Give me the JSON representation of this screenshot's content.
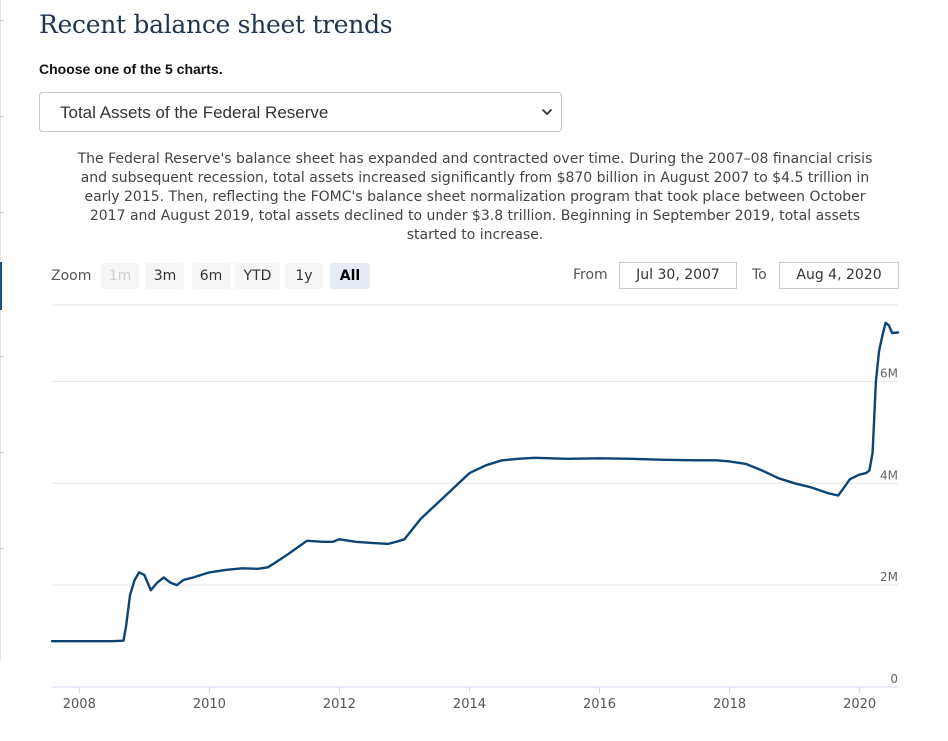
{
  "page": {
    "title": "Recent balance sheet trends",
    "choose_label": "Choose one of the 5 charts.",
    "select_value": "Total Assets of the Federal Reserve",
    "description": "The Federal Reserve's balance sheet has expanded and contracted over time. During the 2007–08 financial crisis and subsequent recession, total assets increased significantly from $870 billion in August 2007 to $4.5 trillion in early 2015. Then, reflecting the FOMC's balance sheet normalization program that took place between October 2017 and August 2019, total assets declined to under $3.8 trillion. Beginning in September 2019, total assets started to increase."
  },
  "toolbar": {
    "zoom_label": "Zoom",
    "buttons": [
      "1m",
      "3m",
      "6m",
      "YTD",
      "1y",
      "All"
    ],
    "disabled": "1m",
    "selected": "All",
    "from_label": "From",
    "from_value": "Jul 30, 2007",
    "to_label": "To",
    "to_value": "Aug 4, 2020"
  },
  "colors": {
    "line": "#0d4474",
    "grid": "#e6e6e6",
    "title": "#1f3550",
    "selected_button": "#e6ebf5"
  },
  "chart_data": {
    "type": "line",
    "title": "",
    "xlabel": "",
    "ylabel": "",
    "xlim": [
      2007.58,
      2020.59
    ],
    "ylim": [
      0,
      7.5
    ],
    "x_ticks": [
      2008,
      2010,
      2012,
      2014,
      2016,
      2018,
      2020
    ],
    "y_ticks": [
      {
        "value": 0,
        "label": "0"
      },
      {
        "value": 2,
        "label": "2M"
      },
      {
        "value": 4,
        "label": "4M"
      },
      {
        "value": 6,
        "label": "6M"
      }
    ],
    "grid": true,
    "legend": "none",
    "series": [
      {
        "x": [
          2007.58,
          2007.9,
          2008.2,
          2008.5,
          2008.68,
          2008.72,
          2008.78,
          2008.85,
          2008.92,
          2009.0,
          2009.1,
          2009.2,
          2009.3,
          2009.4,
          2009.5,
          2009.6,
          2009.75,
          2010.0,
          2010.25,
          2010.5,
          2010.75,
          2010.9,
          2011.0,
          2011.2,
          2011.5,
          2011.75,
          2011.9,
          2012.0,
          2012.25,
          2012.5,
          2012.75,
          2012.9,
          2013.0,
          2013.25,
          2013.5,
          2013.75,
          2014.0,
          2014.25,
          2014.5,
          2014.75,
          2015.0,
          2015.5,
          2016.0,
          2016.5,
          2017.0,
          2017.5,
          2017.8,
          2018.0,
          2018.25,
          2018.5,
          2018.75,
          2019.0,
          2019.25,
          2019.5,
          2019.6,
          2019.67,
          2019.75,
          2019.85,
          2020.0,
          2020.1,
          2020.15,
          2020.2,
          2020.25,
          2020.3,
          2020.35,
          2020.4,
          2020.45,
          2020.5,
          2020.59
        ],
        "values": [
          0.9,
          0.9,
          0.9,
          0.9,
          0.91,
          1.2,
          1.8,
          2.1,
          2.25,
          2.2,
          1.9,
          2.05,
          2.15,
          2.05,
          2.0,
          2.1,
          2.15,
          2.25,
          2.3,
          2.33,
          2.32,
          2.35,
          2.43,
          2.6,
          2.87,
          2.85,
          2.85,
          2.9,
          2.85,
          2.83,
          2.81,
          2.86,
          2.9,
          3.3,
          3.6,
          3.9,
          4.2,
          4.35,
          4.45,
          4.48,
          4.5,
          4.48,
          4.49,
          4.48,
          4.46,
          4.45,
          4.45,
          4.43,
          4.38,
          4.25,
          4.1,
          4.0,
          3.92,
          3.81,
          3.78,
          3.76,
          3.9,
          4.08,
          4.17,
          4.2,
          4.25,
          4.6,
          6.0,
          6.6,
          6.9,
          7.15,
          7.1,
          6.95,
          6.96
        ]
      }
    ]
  }
}
